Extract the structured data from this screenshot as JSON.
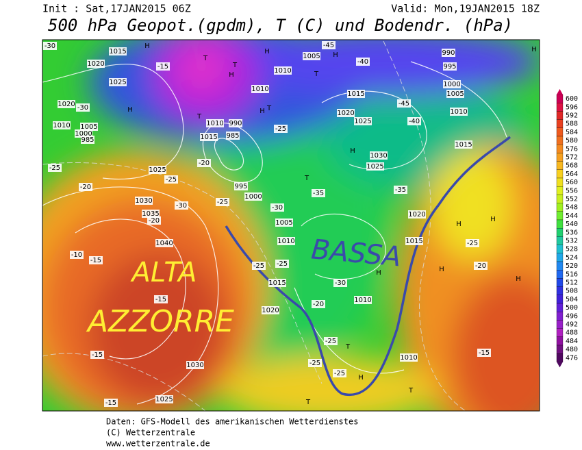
{
  "header": {
    "init": "Init : Sat,17JAN2015 06Z",
    "valid": "Valid: Mon,19JAN2015 18Z",
    "title": "500 hPa Geopot.(gpdm), T (C) und Bodendr. (hPa)"
  },
  "colorbar": {
    "labels": [
      600,
      596,
      592,
      588,
      584,
      580,
      576,
      572,
      568,
      564,
      560,
      556,
      552,
      548,
      544,
      540,
      536,
      532,
      528,
      524,
      520,
      516,
      512,
      508,
      504,
      500,
      496,
      492,
      488,
      484,
      480,
      476
    ]
  },
  "map": {
    "labels": [
      "1015",
      "1020",
      "1025",
      "1020",
      "1010",
      "1005",
      "1000",
      "985",
      "1015",
      "1010",
      "990",
      "985",
      "995",
      "1000",
      "1005",
      "1010",
      "1015",
      "1020",
      "1025",
      "1030",
      "1035",
      "1040",
      "1030",
      "1025",
      "1010",
      "1010",
      "1015",
      "1020",
      "1025",
      "1030",
      "1025",
      "1020",
      "1015",
      "1010",
      "1005",
      "1000",
      "995",
      "990",
      "1015",
      "1010",
      "1005",
      "1010",
      "-30",
      "-15",
      "-30",
      "-25",
      "-20",
      "-25",
      "-20",
      "-25",
      "-30",
      "-25",
      "-25",
      "-30",
      "-20",
      "-25",
      "-25",
      "-25",
      "-35",
      "-35",
      "-40",
      "-45",
      "-45",
      "-40",
      "-30",
      "-20",
      "-15",
      "-15",
      "-15",
      "-15",
      "-20",
      "-25",
      "-25",
      "-15",
      "-10",
      "H",
      "T",
      "H",
      "T",
      "H",
      "H",
      "T",
      "T",
      "H",
      "T",
      "H",
      "T",
      "H",
      "H",
      "H",
      "H",
      "H",
      "T",
      "H",
      "T",
      "T",
      "H",
      "H"
    ]
  },
  "annotations": {
    "alta": "ALTA",
    "azzorre": "AZZORRE",
    "bassa": "BASSA"
  },
  "footer": {
    "line1": "Daten: GFS-Modell des amerikanischen Wetterdienstes",
    "line2": "(C) Wetterzentrale",
    "line3": "www.wetterzentrale.de"
  }
}
